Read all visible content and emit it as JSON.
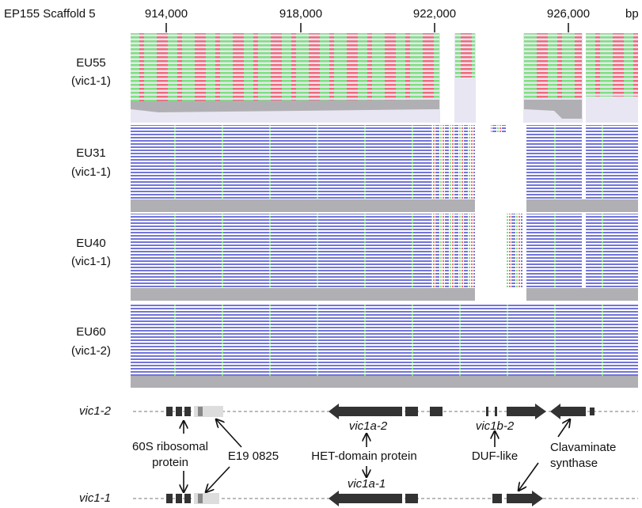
{
  "axis": {
    "label": "EP155 Scaffold 5",
    "ticks": [
      "914,000",
      "918,000",
      "922,000",
      "926,000"
    ],
    "unit": "bp"
  },
  "tracks": [
    {
      "sample": "EU55",
      "allele": "(vic1-1)"
    },
    {
      "sample": "EU31",
      "allele": "(vic1-1)"
    },
    {
      "sample": "EU40",
      "allele": "(vic1-1)"
    },
    {
      "sample": "EU60",
      "allele": "(vic1-2)"
    }
  ],
  "genes": {
    "top_label": "vic1-2",
    "bottom_label": "vic1-1",
    "top_names": [
      "vic1a-2",
      "vic1b-2"
    ],
    "bottom_names": [
      "vic1a-1"
    ]
  },
  "annotations": [
    {
      "lines": [
        "60S ribosomal",
        "protein"
      ]
    },
    {
      "lines": [
        "E19 0825"
      ]
    },
    {
      "lines": [
        "HET-domain protein"
      ]
    },
    {
      "lines": [
        "DUF-like"
      ]
    },
    {
      "lines": [
        "Clavaminate",
        "synthase"
      ]
    }
  ]
}
